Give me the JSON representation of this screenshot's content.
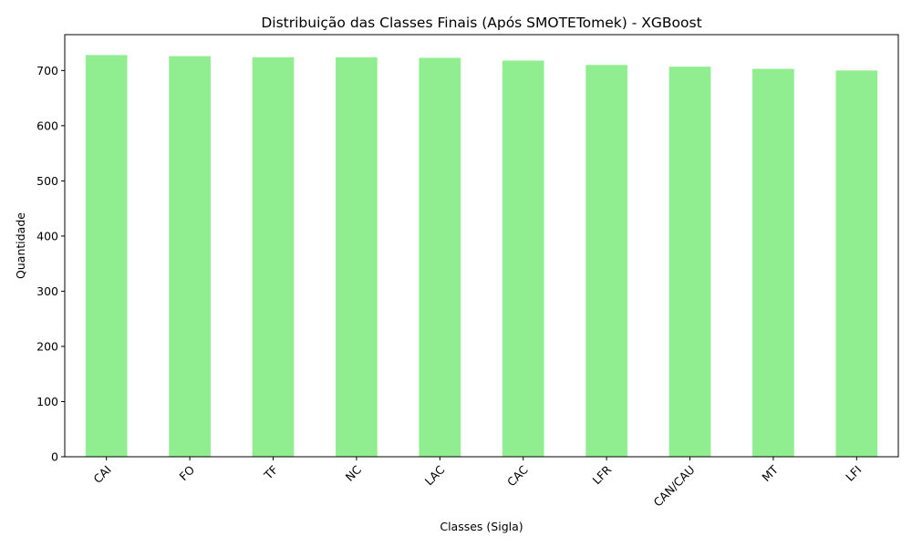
{
  "chart_data": {
    "type": "bar",
    "title": "Distribuição das Classes Finais (Após SMOTETomek) - XGBoost",
    "xlabel": "Classes (Sigla)",
    "ylabel": "Quantidade",
    "categories": [
      "CAI",
      "FO",
      "TF",
      "NC",
      "LAC",
      "CAC",
      "LFR",
      "CAN/CAU",
      "MT",
      "LFI"
    ],
    "values": [
      728,
      726,
      724,
      724,
      723,
      718,
      710,
      707,
      703,
      700
    ],
    "ylim": [
      0,
      765
    ],
    "yticks": [
      0,
      100,
      200,
      300,
      400,
      500,
      600,
      700
    ],
    "bar_color": "#90EE90",
    "grid": false,
    "legend": "none"
  }
}
